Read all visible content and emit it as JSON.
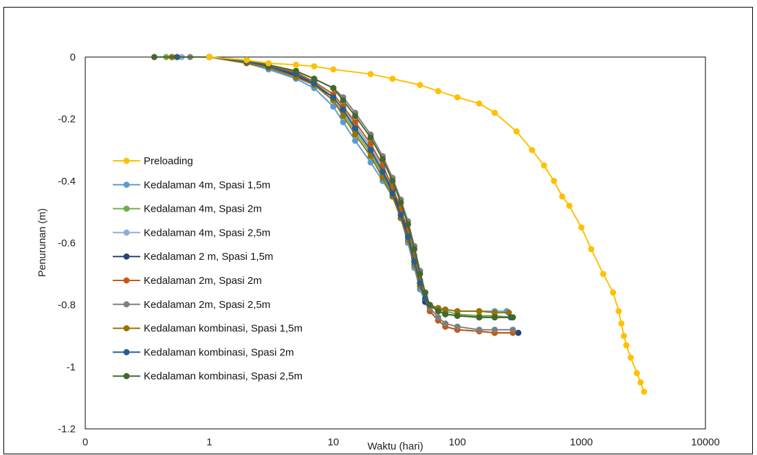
{
  "chart_data": {
    "type": "scatter",
    "title": "",
    "xlabel": "Waktu (hari)",
    "ylabel": "Penurunan (m)",
    "xscale": "log",
    "xlim": [
      0.1,
      10000
    ],
    "ylim": [
      -1.2,
      0
    ],
    "x_tick_labels": [
      "0",
      "1",
      "10",
      "100",
      "1000",
      "10000"
    ],
    "y_tick_labels": [
      "0",
      "-0.2",
      "-0.4",
      "-0.6",
      "-0.8",
      "-1",
      "-1.2"
    ],
    "y_ticks": [
      0,
      -0.2,
      -0.4,
      -0.6,
      -0.8,
      -1,
      -1.2
    ],
    "legend_position": "left",
    "series": [
      {
        "name": "Preloading",
        "color": "#FFC000",
        "x": [
          1,
          2,
          3,
          5,
          7,
          10,
          20,
          30,
          50,
          70,
          100,
          150,
          200,
          300,
          400,
          500,
          600,
          700,
          800,
          1000,
          1200,
          1500,
          1800,
          2000,
          2100,
          2200,
          2300,
          2500,
          2800,
          3000,
          3200
        ],
        "y": [
          0,
          -0.01,
          -0.02,
          -0.025,
          -0.03,
          -0.04,
          -0.055,
          -0.07,
          -0.09,
          -0.11,
          -0.13,
          -0.15,
          -0.18,
          -0.24,
          -0.3,
          -0.35,
          -0.4,
          -0.45,
          -0.48,
          -0.55,
          -0.62,
          -0.7,
          -0.76,
          -0.82,
          -0.86,
          -0.9,
          -0.93,
          -0.97,
          -1.02,
          -1.05,
          -1.08
        ]
      },
      {
        "name": "Kedalaman 4m, Spasi 1,5m",
        "color": "#5B9BD5",
        "x": [
          0.5,
          1,
          2,
          3,
          5,
          7,
          10,
          12,
          15,
          20,
          25,
          30,
          35,
          40,
          45,
          50,
          55,
          60,
          70,
          80,
          100,
          150,
          200,
          250
        ],
        "y": [
          0,
          0,
          -0.02,
          -0.04,
          -0.07,
          -0.1,
          -0.16,
          -0.21,
          -0.27,
          -0.34,
          -0.4,
          -0.45,
          -0.52,
          -0.6,
          -0.68,
          -0.75,
          -0.79,
          -0.8,
          -0.81,
          -0.815,
          -0.82,
          -0.82,
          -0.82,
          -0.82
        ]
      },
      {
        "name": "Kedalaman 4m, Spasi 2m",
        "color": "#70AD47",
        "x": [
          0.45,
          1,
          2,
          3,
          5,
          7,
          10,
          12,
          15,
          20,
          25,
          30,
          35,
          40,
          45,
          50,
          55,
          60,
          70,
          80,
          100,
          150,
          200,
          270
        ],
        "y": [
          0,
          0,
          -0.015,
          -0.03,
          -0.06,
          -0.09,
          -0.14,
          -0.18,
          -0.24,
          -0.31,
          -0.38,
          -0.44,
          -0.51,
          -0.58,
          -0.66,
          -0.73,
          -0.78,
          -0.8,
          -0.815,
          -0.82,
          -0.83,
          -0.835,
          -0.835,
          -0.84
        ]
      },
      {
        "name": "Kedalaman 4m, Spasi 2,5m",
        "color": "#8FAADC",
        "x": [
          0.6,
          1,
          2,
          3,
          5,
          7,
          10,
          12,
          15,
          20,
          25,
          30,
          35,
          40,
          45,
          50,
          55,
          60,
          70,
          80,
          100,
          150,
          200,
          280
        ],
        "y": [
          0,
          0,
          -0.015,
          -0.03,
          -0.05,
          -0.08,
          -0.12,
          -0.16,
          -0.22,
          -0.29,
          -0.36,
          -0.43,
          -0.5,
          -0.57,
          -0.65,
          -0.72,
          -0.77,
          -0.8,
          -0.82,
          -0.83,
          -0.835,
          -0.84,
          -0.84,
          -0.84
        ]
      },
      {
        "name": "Kedalaman 2 m, Spasi 1,5m",
        "color": "#264478",
        "x": [
          0.5,
          1,
          2,
          3,
          5,
          7,
          10,
          12,
          15,
          20,
          25,
          30,
          35,
          40,
          45,
          50,
          55,
          60,
          70,
          80,
          100,
          150,
          200,
          310
        ],
        "y": [
          0,
          0,
          -0.015,
          -0.03,
          -0.06,
          -0.09,
          -0.13,
          -0.17,
          -0.23,
          -0.3,
          -0.37,
          -0.43,
          -0.5,
          -0.57,
          -0.65,
          -0.73,
          -0.79,
          -0.82,
          -0.85,
          -0.87,
          -0.88,
          -0.885,
          -0.89,
          -0.89
        ]
      },
      {
        "name": "Kedalaman 2m, Spasi 2m",
        "color": "#C55A11",
        "x": [
          0.55,
          1,
          2,
          3,
          5,
          7,
          10,
          12,
          15,
          20,
          25,
          30,
          35,
          40,
          45,
          50,
          55,
          60,
          70,
          80,
          100,
          150,
          200,
          280
        ],
        "y": [
          0,
          0,
          -0.015,
          -0.03,
          -0.05,
          -0.08,
          -0.12,
          -0.16,
          -0.21,
          -0.28,
          -0.35,
          -0.42,
          -0.49,
          -0.56,
          -0.64,
          -0.72,
          -0.78,
          -0.82,
          -0.85,
          -0.87,
          -0.88,
          -0.885,
          -0.89,
          -0.89
        ]
      },
      {
        "name": "Kedalaman 2m, Spasi 2,5m",
        "color": "#7F7F7F",
        "x": [
          0.7,
          1,
          2,
          3,
          5,
          7,
          10,
          12,
          15,
          20,
          25,
          30,
          35,
          40,
          45,
          50,
          55,
          60,
          70,
          80,
          100,
          150,
          200,
          280
        ],
        "y": [
          0,
          0,
          -0.01,
          -0.025,
          -0.045,
          -0.07,
          -0.1,
          -0.13,
          -0.18,
          -0.25,
          -0.32,
          -0.39,
          -0.46,
          -0.53,
          -0.61,
          -0.69,
          -0.76,
          -0.81,
          -0.84,
          -0.86,
          -0.87,
          -0.88,
          -0.88,
          -0.88
        ]
      },
      {
        "name": "Kedalaman kombinasi, Spasi 1,5m",
        "color": "#997300",
        "x": [
          0.5,
          1,
          2,
          3,
          5,
          7,
          10,
          12,
          15,
          20,
          25,
          30,
          35,
          40,
          45,
          50,
          55,
          60,
          70,
          80,
          100,
          150,
          200,
          260
        ],
        "y": [
          0,
          0,
          -0.02,
          -0.035,
          -0.065,
          -0.09,
          -0.14,
          -0.19,
          -0.25,
          -0.32,
          -0.39,
          -0.45,
          -0.52,
          -0.59,
          -0.67,
          -0.74,
          -0.78,
          -0.8,
          -0.81,
          -0.815,
          -0.82,
          -0.82,
          -0.825,
          -0.825
        ]
      },
      {
        "name": "Kedalaman kombinasi, Spasi 2m",
        "color": "#255E91",
        "x": [
          0.55,
          1,
          2,
          3,
          5,
          7,
          10,
          12,
          15,
          20,
          25,
          30,
          35,
          40,
          45,
          50,
          55,
          60,
          70,
          80,
          100,
          150,
          200,
          270
        ],
        "y": [
          0,
          0,
          -0.015,
          -0.03,
          -0.055,
          -0.085,
          -0.13,
          -0.17,
          -0.23,
          -0.3,
          -0.37,
          -0.44,
          -0.51,
          -0.58,
          -0.66,
          -0.73,
          -0.78,
          -0.8,
          -0.82,
          -0.83,
          -0.835,
          -0.84,
          -0.84,
          -0.84
        ]
      },
      {
        "name": "Kedalaman kombinasi, Spasi 2,5m",
        "color": "#43682B",
        "x": [
          0.36,
          1,
          2,
          3,
          5,
          7,
          10,
          12,
          15,
          20,
          25,
          30,
          35,
          40,
          45,
          50,
          55,
          60,
          70,
          80,
          100,
          150,
          200,
          280
        ],
        "y": [
          0,
          0,
          -0.01,
          -0.025,
          -0.045,
          -0.07,
          -0.1,
          -0.14,
          -0.19,
          -0.26,
          -0.33,
          -0.4,
          -0.47,
          -0.54,
          -0.62,
          -0.7,
          -0.76,
          -0.8,
          -0.82,
          -0.83,
          -0.835,
          -0.84,
          -0.84,
          -0.84
        ]
      }
    ]
  }
}
